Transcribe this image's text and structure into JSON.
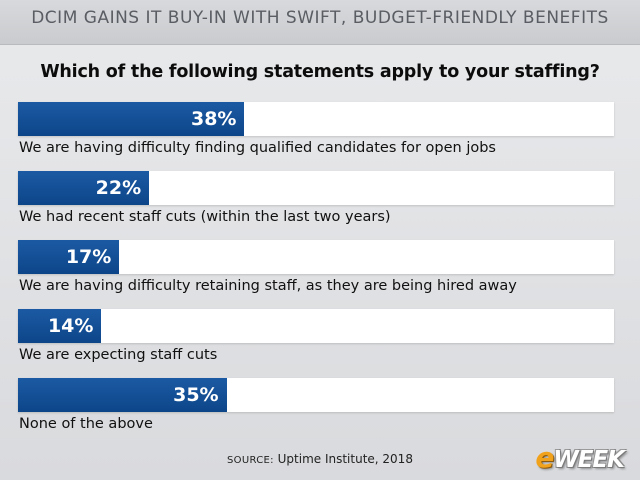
{
  "header": {
    "title": "DCIM GAINS IT BUY-IN WITH SWIFT, BUDGET-FRIENDLY BENEFITS"
  },
  "question": "Which of the following statements apply to your staffing?",
  "chart_data": {
    "type": "bar",
    "orientation": "horizontal",
    "title": "Which of the following statements apply to your staffing?",
    "categories": [
      "We are having difficulty finding qualified candidates for open jobs",
      "We had recent staff cuts (within the last two years)",
      "We are having difficulty retaining staff, as they are being hired away",
      "We are expecting staff cuts",
      "None of the above"
    ],
    "values": [
      38,
      22,
      17,
      14,
      35
    ],
    "value_labels": [
      "38%",
      "22%",
      "17%",
      "14%",
      "35%"
    ],
    "unit": "%",
    "xlim": [
      0,
      100
    ],
    "grid": false,
    "legend": "none"
  },
  "source": {
    "prefix": "SOURCE:",
    "text": "Uptime Institute, 2018"
  },
  "logo": {
    "e": "e",
    "rest": "WEEK"
  },
  "colors": {
    "bar": "#0d4589",
    "track": "#ffffff",
    "background": "#e1e2e4"
  }
}
